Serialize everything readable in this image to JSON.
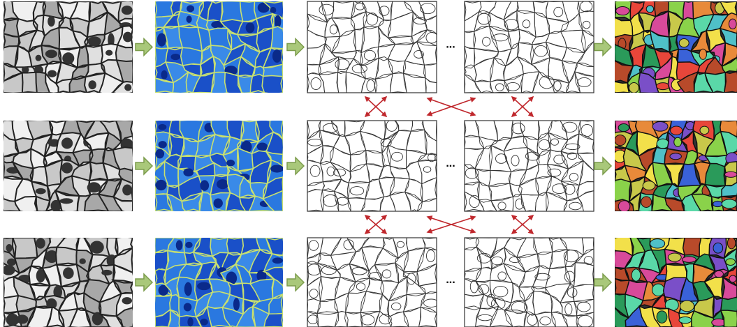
{
  "rows": [
    {
      "ellipsis": "..."
    },
    {
      "ellipsis": "..."
    },
    {
      "ellipsis": "..."
    }
  ]
}
